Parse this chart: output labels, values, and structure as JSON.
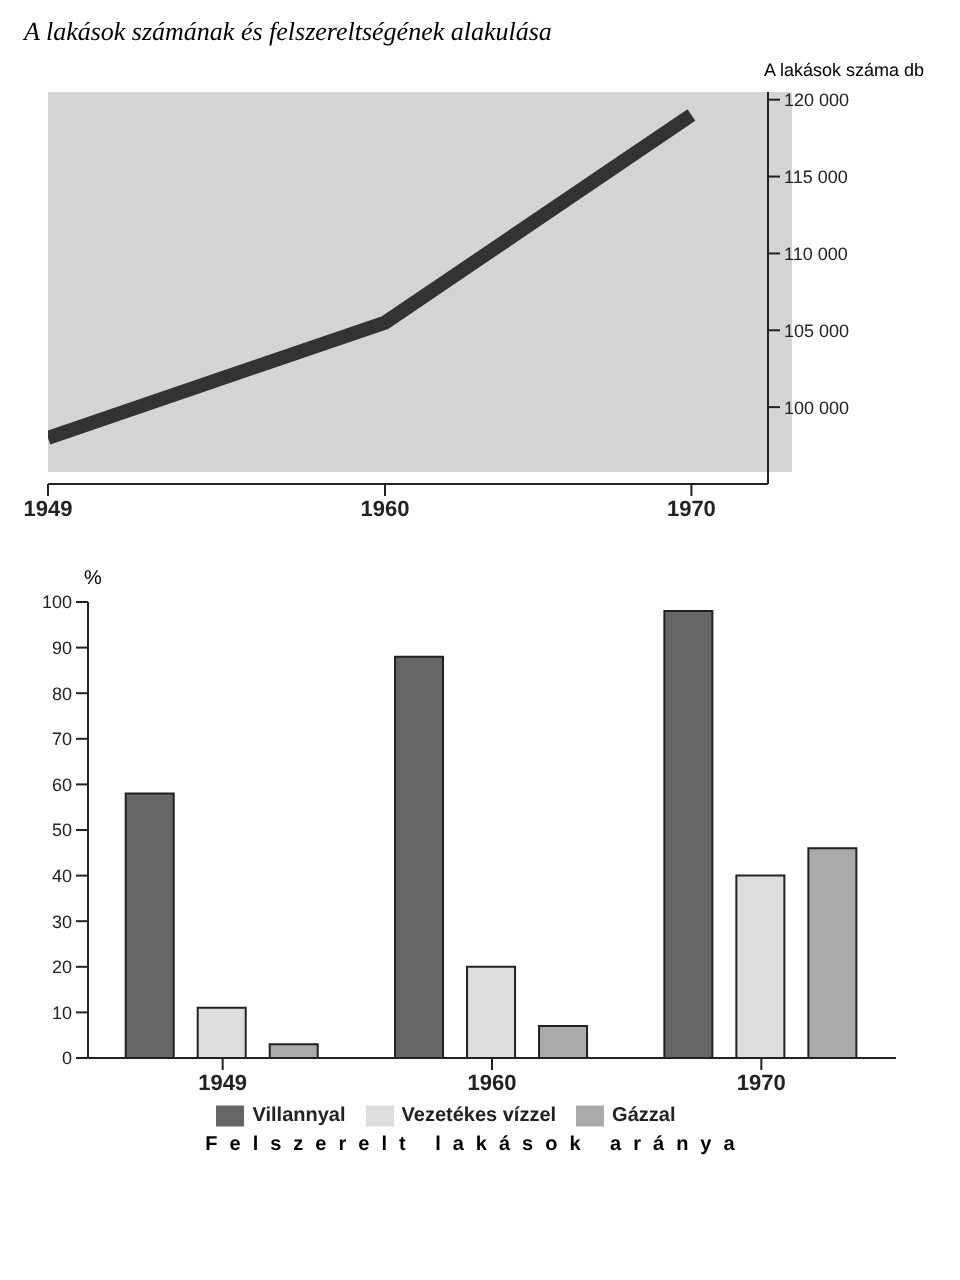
{
  "chart_data": [
    {
      "type": "line",
      "title": "A lakások számának és felszereltségének alakulása",
      "ylabel": "A lakások száma db",
      "x": [
        1949,
        1960,
        1970
      ],
      "series": [
        {
          "color": "#333333",
          "values": [
            98000,
            105500,
            119000
          ]
        }
      ],
      "xlim": [
        1949,
        1972.5
      ],
      "xticks": [
        1949,
        1960,
        1970
      ],
      "ylim": [
        95000,
        120500
      ],
      "yticks": [
        {
          "value": 100000,
          "label": "100 000"
        },
        {
          "value": 105000,
          "label": "105 000"
        },
        {
          "value": 110000,
          "label": "110 000"
        },
        {
          "value": 115000,
          "label": "115 000"
        },
        {
          "value": 120000,
          "label": "120 000"
        }
      ],
      "marker": "none",
      "grid": false
    },
    {
      "type": "bar",
      "ylabel": "%",
      "xlabel": "Felszerelt lakások aránya",
      "categories": [
        "1949",
        "1960",
        "1970"
      ],
      "series": [
        {
          "name": "Villannyal",
          "color": "#666666",
          "values": [
            58,
            88,
            98
          ]
        },
        {
          "name": "Vezetékes vízzel",
          "color": "#dddddd",
          "values": [
            11,
            20,
            40
          ]
        },
        {
          "name": "Gázzal",
          "color": "#aaaaaa",
          "values": [
            3,
            7,
            46
          ]
        }
      ],
      "ylim": [
        0,
        100
      ],
      "yticks": [
        0,
        10,
        20,
        30,
        40,
        50,
        60,
        70,
        80,
        90,
        100
      ],
      "legend": "bottom",
      "grid": false
    }
  ]
}
